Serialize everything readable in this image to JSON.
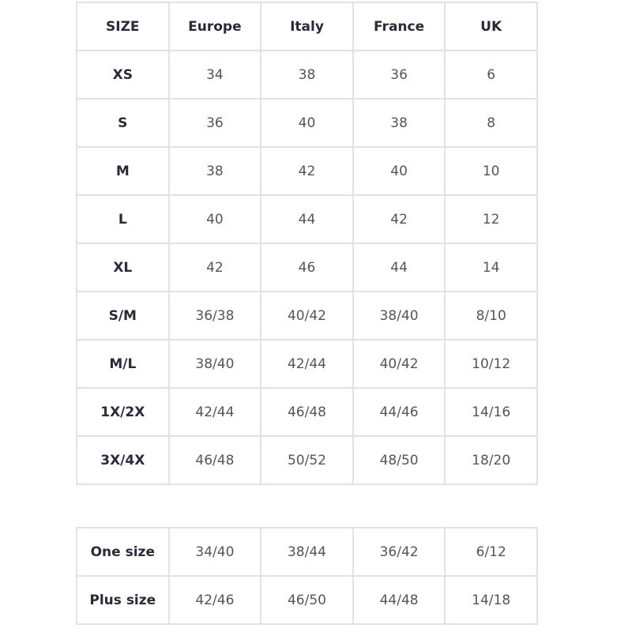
{
  "headers": [
    "SIZE",
    "Europe",
    "Italy",
    "France",
    "UK"
  ],
  "rows": [
    [
      "XS",
      "34",
      "38",
      "36",
      "6"
    ],
    [
      "S",
      "36",
      "40",
      "38",
      "8"
    ],
    [
      "M",
      "38",
      "42",
      "40",
      "10"
    ],
    [
      "L",
      "40",
      "44",
      "42",
      "12"
    ],
    [
      "XL",
      "42",
      "46",
      "44",
      "14"
    ],
    [
      "S/M",
      "36/38",
      "40/42",
      "38/40",
      "8/10"
    ],
    [
      "M/L",
      "38/40",
      "42/44",
      "40/42",
      "10/12"
    ],
    [
      "1X/2X",
      "42/44",
      "46/48",
      "44/46",
      "14/16"
    ],
    [
      "3X/4X",
      "46/48",
      "50/52",
      "48/50",
      "18/20"
    ]
  ],
  "extra_rows": [
    [
      "One size",
      "34/40",
      "38/44",
      "36/42",
      "6/12"
    ],
    [
      "Plus size",
      "42/46",
      "46/50",
      "44/48",
      "14/18"
    ]
  ]
}
